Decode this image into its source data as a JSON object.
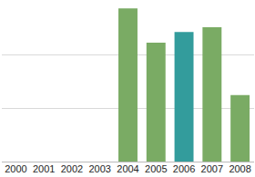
{
  "chart_data": {
    "type": "bar",
    "categories": [
      "2000",
      "2001",
      "2002",
      "2003",
      "2004",
      "2005",
      "2006",
      "2007",
      "2008"
    ],
    "values": [
      null,
      null,
      null,
      null,
      2.86,
      2.22,
      2.42,
      2.51,
      1.24
    ],
    "colors": [
      "#7aab64",
      "#7aab64",
      "#7aab64",
      "#7aab64",
      "#7aab64",
      "#7aab64",
      "#339c9c",
      "#7aab64",
      "#7aab64"
    ],
    "ylim": [
      0,
      3
    ],
    "yticks": [
      0,
      1,
      2,
      3
    ],
    "grid": true,
    "tick_labels": "x"
  }
}
